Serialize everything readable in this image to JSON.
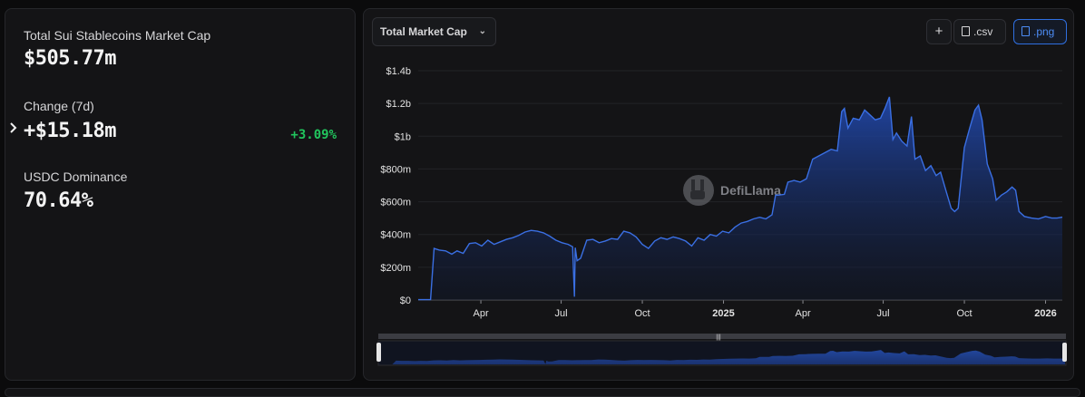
{
  "stats": {
    "market_cap_label": "Total Sui Stablecoins Market Cap",
    "market_cap_value": "$505.77m",
    "change_label": "Change (7d)",
    "change_value": "+$15.18m",
    "change_pct": "+3.09%",
    "dominance_label": "USDC Dominance",
    "dominance_value": "70.64%"
  },
  "toolbar": {
    "metric_select": "Total Market Cap",
    "add_label": "+",
    "csv_label": ".csv",
    "png_label": ".png"
  },
  "watermark": "DefiLlama",
  "colors": {
    "line": "#3a6fe3",
    "area_top": "#2147a8",
    "positive": "#21c55d",
    "accent": "#2f6fe0"
  },
  "chart_data": {
    "type": "area",
    "title": "",
    "xlabel": "",
    "ylabel": "",
    "ylim": [
      0,
      1400
    ],
    "unit": "millions USD",
    "y_ticks": [
      {
        "value": 0,
        "label": "$0"
      },
      {
        "value": 200,
        "label": "$200m"
      },
      {
        "value": 400,
        "label": "$400m"
      },
      {
        "value": 600,
        "label": "$600m"
      },
      {
        "value": 800,
        "label": "$800m"
      },
      {
        "value": 1000,
        "label": "$1b"
      },
      {
        "value": 1200,
        "label": "$1.2b"
      },
      {
        "value": 1400,
        "label": "$1.4b"
      }
    ],
    "x_ticks": [
      {
        "date": "2024-04-01",
        "label": "Apr",
        "bold": false
      },
      {
        "date": "2024-07-01",
        "label": "Jul",
        "bold": false
      },
      {
        "date": "2024-10-01",
        "label": "Oct",
        "bold": false
      },
      {
        "date": "2025-01-01",
        "label": "2025",
        "bold": true
      },
      {
        "date": "2025-04-01",
        "label": "Apr",
        "bold": false
      },
      {
        "date": "2025-07-01",
        "label": "Jul",
        "bold": false
      },
      {
        "date": "2025-10-01",
        "label": "Oct",
        "bold": false
      },
      {
        "date": "2026-01-01",
        "label": "2026",
        "bold": true
      }
    ],
    "grid": true,
    "series": [
      {
        "values": [
          [
            "2024-01-21",
            2
          ],
          [
            "2024-02-04",
            2
          ],
          [
            "2024-02-08",
            315
          ],
          [
            "2024-02-14",
            305
          ],
          [
            "2024-02-21",
            300
          ],
          [
            "2024-02-28",
            280
          ],
          [
            "2024-03-05",
            300
          ],
          [
            "2024-03-12",
            285
          ],
          [
            "2024-03-19",
            345
          ],
          [
            "2024-03-26",
            350
          ],
          [
            "2024-04-02",
            330
          ],
          [
            "2024-04-09",
            365
          ],
          [
            "2024-04-16",
            340
          ],
          [
            "2024-04-23",
            355
          ],
          [
            "2024-04-30",
            370
          ],
          [
            "2024-05-07",
            380
          ],
          [
            "2024-05-14",
            395
          ],
          [
            "2024-05-21",
            415
          ],
          [
            "2024-05-28",
            425
          ],
          [
            "2024-06-04",
            420
          ],
          [
            "2024-06-11",
            410
          ],
          [
            "2024-06-18",
            390
          ],
          [
            "2024-06-25",
            365
          ],
          [
            "2024-07-02",
            350
          ],
          [
            "2024-07-09",
            340
          ],
          [
            "2024-07-14",
            325
          ],
          [
            "2024-07-16",
            20
          ],
          [
            "2024-07-17",
            320
          ],
          [
            "2024-07-19",
            240
          ],
          [
            "2024-07-23",
            255
          ],
          [
            "2024-07-30",
            365
          ],
          [
            "2024-08-06",
            370
          ],
          [
            "2024-08-13",
            350
          ],
          [
            "2024-08-20",
            360
          ],
          [
            "2024-08-27",
            375
          ],
          [
            "2024-09-03",
            370
          ],
          [
            "2024-09-10",
            420
          ],
          [
            "2024-09-17",
            410
          ],
          [
            "2024-09-24",
            385
          ],
          [
            "2024-10-01",
            340
          ],
          [
            "2024-10-08",
            315
          ],
          [
            "2024-10-15",
            360
          ],
          [
            "2024-10-22",
            380
          ],
          [
            "2024-10-29",
            370
          ],
          [
            "2024-11-05",
            385
          ],
          [
            "2024-11-12",
            375
          ],
          [
            "2024-11-19",
            360
          ],
          [
            "2024-11-26",
            330
          ],
          [
            "2024-12-03",
            380
          ],
          [
            "2024-12-10",
            365
          ],
          [
            "2024-12-17",
            400
          ],
          [
            "2024-12-24",
            390
          ],
          [
            "2024-12-31",
            420
          ],
          [
            "2025-01-07",
            410
          ],
          [
            "2025-01-14",
            445
          ],
          [
            "2025-01-21",
            470
          ],
          [
            "2025-01-28",
            480
          ],
          [
            "2025-02-04",
            495
          ],
          [
            "2025-02-11",
            505
          ],
          [
            "2025-02-18",
            495
          ],
          [
            "2025-02-25",
            520
          ],
          [
            "2025-03-01",
            640
          ],
          [
            "2025-03-04",
            640
          ],
          [
            "2025-03-11",
            645
          ],
          [
            "2025-03-15",
            720
          ],
          [
            "2025-03-22",
            730
          ],
          [
            "2025-03-29",
            720
          ],
          [
            "2025-04-05",
            740
          ],
          [
            "2025-04-12",
            860
          ],
          [
            "2025-04-19",
            880
          ],
          [
            "2025-04-26",
            900
          ],
          [
            "2025-05-03",
            920
          ],
          [
            "2025-05-10",
            910
          ],
          [
            "2025-05-15",
            1150
          ],
          [
            "2025-05-18",
            1170
          ],
          [
            "2025-05-22",
            1050
          ],
          [
            "2025-05-28",
            1110
          ],
          [
            "2025-06-04",
            1100
          ],
          [
            "2025-06-10",
            1160
          ],
          [
            "2025-06-16",
            1130
          ],
          [
            "2025-06-22",
            1100
          ],
          [
            "2025-06-28",
            1110
          ],
          [
            "2025-07-03",
            1170
          ],
          [
            "2025-07-08",
            1240
          ],
          [
            "2025-07-12",
            980
          ],
          [
            "2025-07-16",
            1020
          ],
          [
            "2025-07-22",
            970
          ],
          [
            "2025-07-28",
            940
          ],
          [
            "2025-08-02",
            1120
          ],
          [
            "2025-08-06",
            860
          ],
          [
            "2025-08-12",
            880
          ],
          [
            "2025-08-18",
            790
          ],
          [
            "2025-08-24",
            820
          ],
          [
            "2025-08-30",
            760
          ],
          [
            "2025-09-04",
            780
          ],
          [
            "2025-09-10",
            670
          ],
          [
            "2025-09-16",
            560
          ],
          [
            "2025-09-20",
            540
          ],
          [
            "2025-09-24",
            560
          ],
          [
            "2025-10-01",
            930
          ],
          [
            "2025-10-07",
            1050
          ],
          [
            "2025-10-13",
            1160
          ],
          [
            "2025-10-17",
            1190
          ],
          [
            "2025-10-21",
            1100
          ],
          [
            "2025-10-27",
            830
          ],
          [
            "2025-11-02",
            740
          ],
          [
            "2025-11-06",
            610
          ],
          [
            "2025-11-12",
            640
          ],
          [
            "2025-11-18",
            660
          ],
          [
            "2025-11-24",
            690
          ],
          [
            "2025-11-28",
            670
          ],
          [
            "2025-12-02",
            540
          ],
          [
            "2025-12-08",
            510
          ],
          [
            "2025-12-16",
            500
          ],
          [
            "2025-12-24",
            495
          ],
          [
            "2026-01-01",
            510
          ],
          [
            "2026-01-08",
            500
          ],
          [
            "2026-01-14",
            500
          ],
          [
            "2026-01-20",
            505.77
          ]
        ]
      }
    ]
  }
}
